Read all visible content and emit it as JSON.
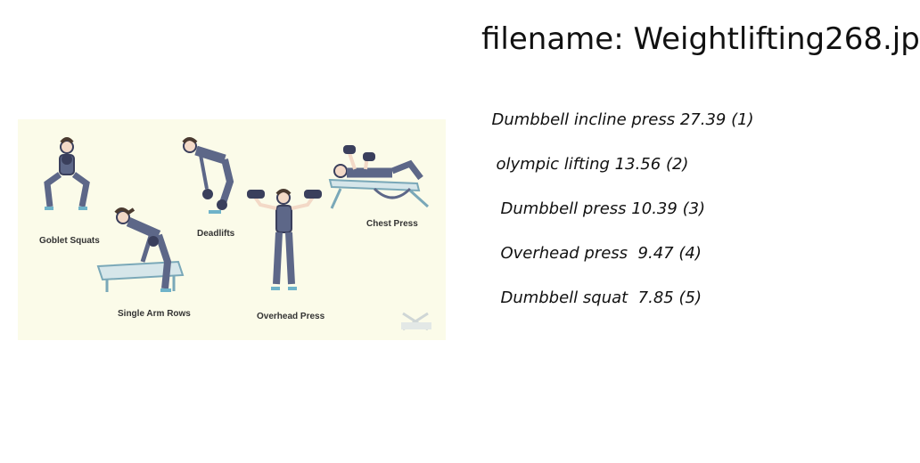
{
  "title": "filename: Weightlifting268.jp",
  "figure": {
    "labels": {
      "goblet": "Goblet Squats",
      "rows": "Single Arm Rows",
      "deadlifts": "Deadlifts",
      "overhead": "Overhead Press",
      "chest": "Chest Press"
    }
  },
  "predictions": [
    {
      "label": "Dumbbell incline press",
      "score": "27.39",
      "rank": "(1)"
    },
    {
      "label": "olympic lifting",
      "score": "13.56",
      "rank": "(2)"
    },
    {
      "label": "Dumbbell press",
      "score": "10.39",
      "rank": "(3)"
    },
    {
      "label": "Overhead press",
      "score": " 9.47",
      "rank": "(4)"
    },
    {
      "label": "Dumbbell squat",
      "score": " 7.85",
      "rank": "(5)"
    }
  ]
}
